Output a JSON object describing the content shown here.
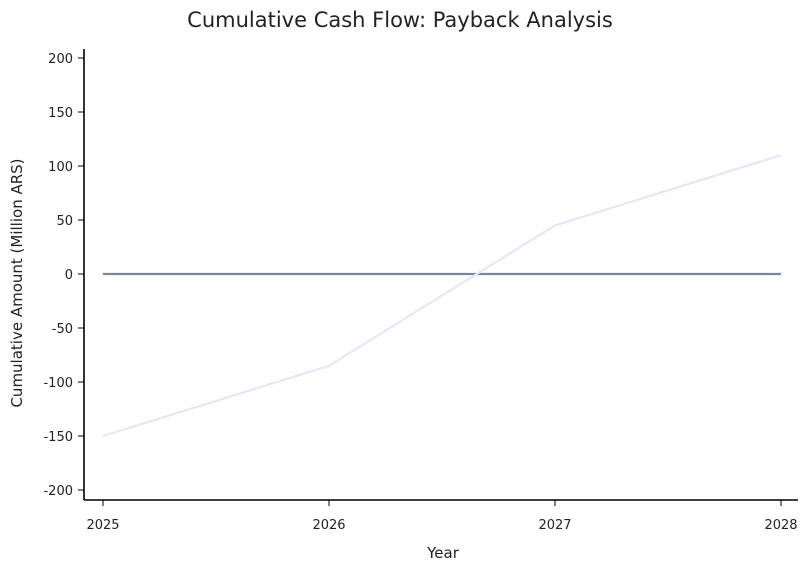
{
  "chart_data": {
    "type": "line",
    "title": "Cumulative Cash Flow: Payback Analysis",
    "xlabel": "Year",
    "ylabel": "Cumulative Amount (Million ARS)",
    "x": [
      "2025",
      "2026",
      "2027",
      "2028"
    ],
    "series": [
      {
        "values": [
          -150,
          -85,
          45,
          110
        ],
        "color": "#e6e6fa"
      }
    ],
    "reference_line": {
      "y": 0,
      "color": "#778899"
    },
    "ylim": [
      -210,
      210
    ],
    "yticks": [
      -200,
      -150,
      -100,
      -50,
      0,
      50,
      100,
      150,
      200
    ],
    "grid": false,
    "legend": "none"
  }
}
